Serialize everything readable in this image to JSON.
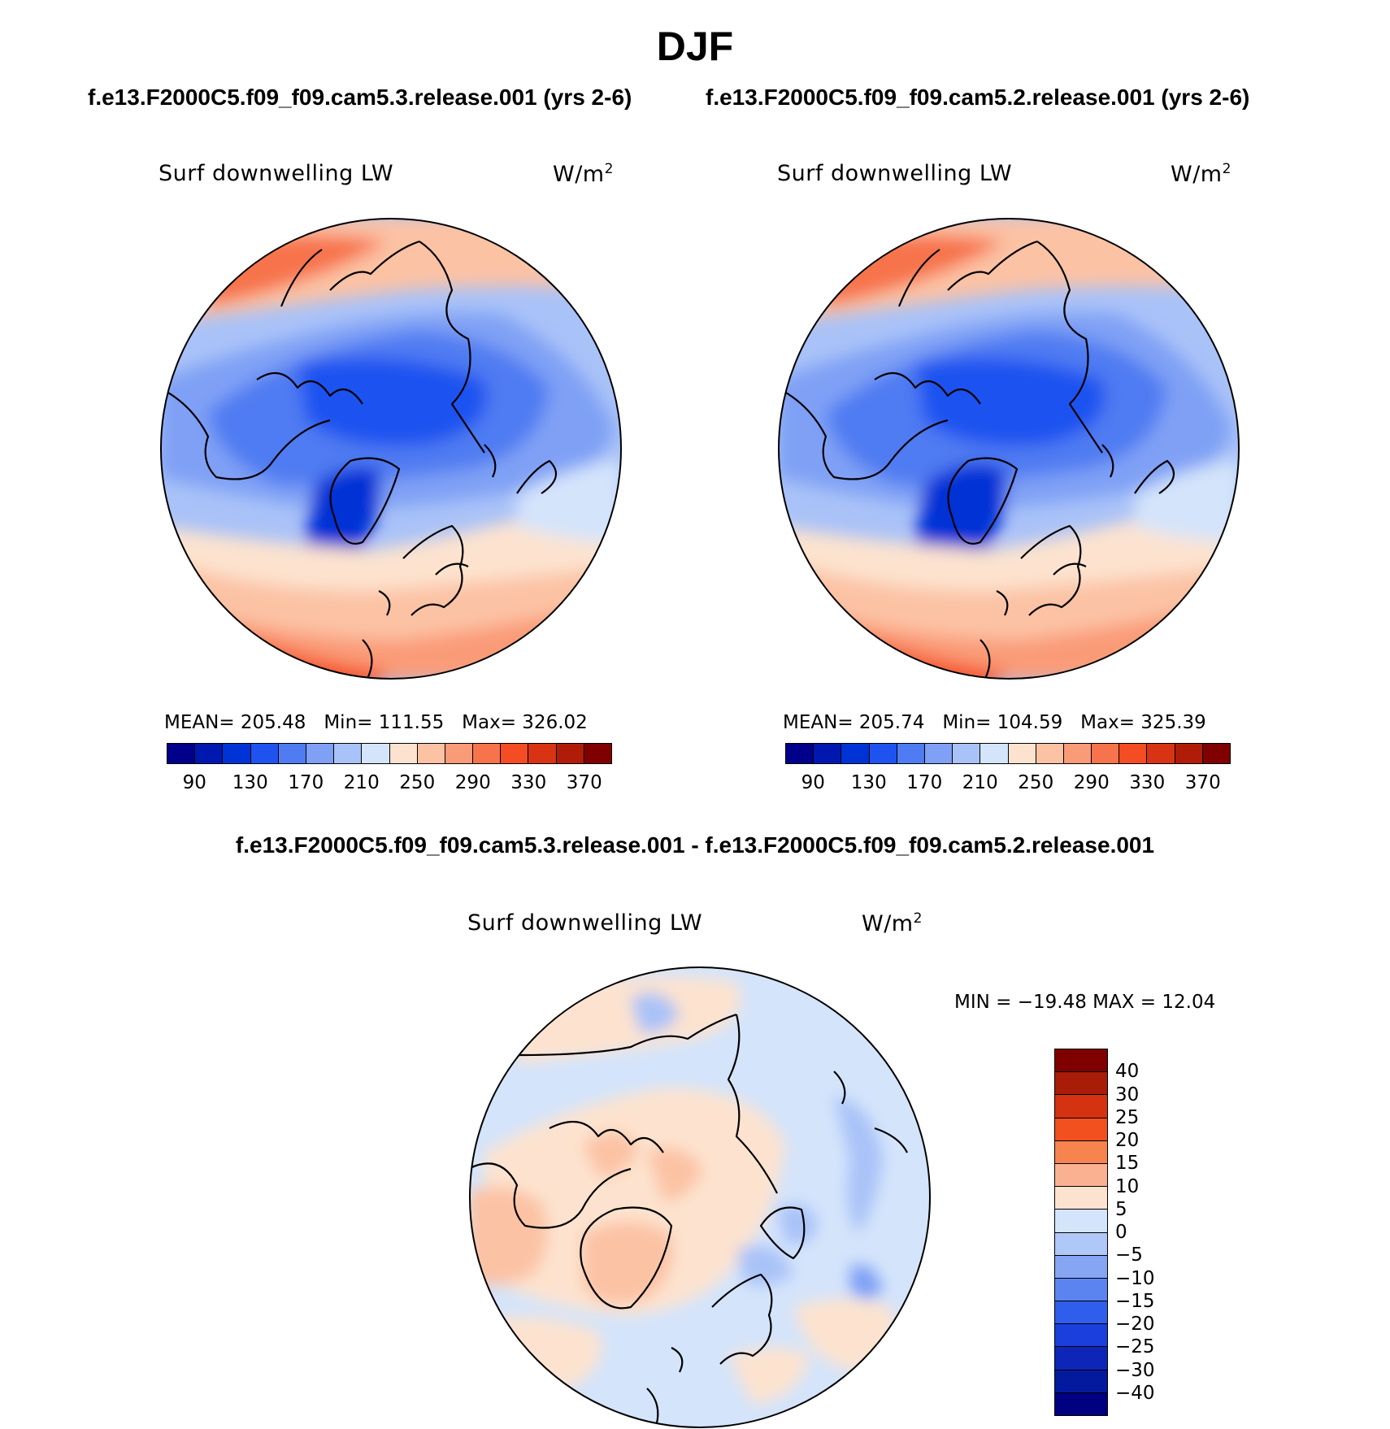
{
  "season": "DJF",
  "panels": [
    {
      "case_title": "f.e13.F2000C5.f09_f09.cam5.3.release.001 (yrs 2-6)",
      "variable": "Surf downwelling LW",
      "units": "W/m",
      "units_exp": "2",
      "stats": {
        "mean_label": "MEAN=",
        "mean": "205.48",
        "min_label": "Min=",
        "min": "111.55",
        "max_label": "Max=",
        "max": "326.02"
      }
    },
    {
      "case_title": "f.e13.F2000C5.f09_f09.cam5.2.release.001 (yrs 2-6)",
      "variable": "Surf downwelling LW",
      "units": "W/m",
      "units_exp": "2",
      "stats": {
        "mean_label": "MEAN=",
        "mean": "205.74",
        "min_label": "Min=",
        "min": "104.59",
        "max_label": "Max=",
        "max": "325.39"
      }
    }
  ],
  "field_colorbar": {
    "tick_labels": [
      "90",
      "130",
      "170",
      "210",
      "250",
      "290",
      "330",
      "370"
    ],
    "colors": [
      "#00008b",
      "#0018b0",
      "#0033d6",
      "#1f53f0",
      "#4f7cf2",
      "#7fa0f5",
      "#a9c2f8",
      "#d4e4fb",
      "#fde3cf",
      "#fcc2a4",
      "#fa9b78",
      "#f7734c",
      "#f44c23",
      "#d83312",
      "#b01c08",
      "#800000"
    ]
  },
  "difference": {
    "title": "f.e13.F2000C5.f09_f09.cam5.3.release.001 - f.e13.F2000C5.f09_f09.cam5.2.release.001",
    "variable": "Surf downwelling LW",
    "units": "W/m",
    "units_exp": "2",
    "minmax": "MIN = −19.48 MAX =   12.04",
    "colorbar": {
      "tick_labels": [
        "40",
        "30",
        "25",
        "20",
        "15",
        "10",
        "5",
        "0",
        "−5",
        "−10",
        "−15",
        "−20",
        "−25",
        "−30",
        "−40"
      ],
      "colors": [
        "#800000",
        "#a81c08",
        "#d43210",
        "#f2501f",
        "#f7834f",
        "#fab192",
        "#fde3cf",
        "#d4e4fb",
        "#b0c8f8",
        "#86a6f4",
        "#5b84f0",
        "#2e5eeb",
        "#1a3fdc",
        "#0d26b8",
        "#041a9e",
        "#000080"
      ]
    }
  },
  "palette": {
    "ocean": "#ffffff",
    "coast": "#000000"
  }
}
